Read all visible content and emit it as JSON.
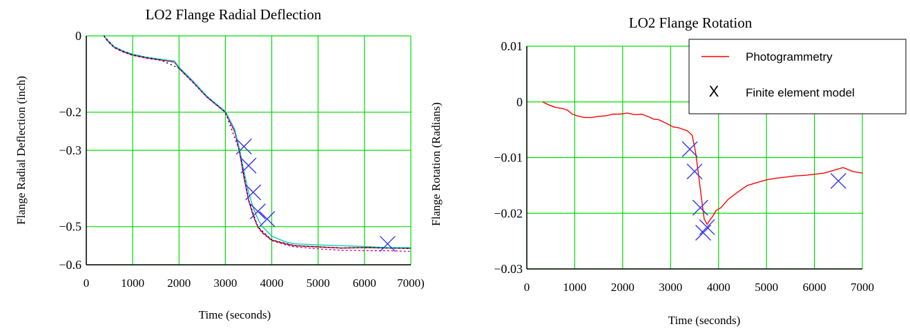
{
  "chart_data": [
    {
      "type": "line",
      "title": "LO2 Flange Radial Deflection",
      "xlabel": "Time (seconds)",
      "ylabel": "Flange Radial Deflection (inch)",
      "xlim": [
        0,
        7000
      ],
      "ylim": [
        -0.6,
        0
      ],
      "xticks": [
        0,
        1000,
        2000,
        3000,
        4000,
        5000,
        6000,
        7000
      ],
      "xtick_labels": [
        "0",
        "1000",
        "2000",
        "3000",
        "4000",
        "5000",
        "6000",
        "7000)"
      ],
      "yticks": [
        0,
        -0.2,
        -0.3,
        -0.5,
        -0.6
      ],
      "ytick_labels": [
        "0",
        "−0.2",
        "−0.3",
        "−0.5",
        "−0.6"
      ],
      "grid": true,
      "colors": {
        "grid": "#00dd00",
        "marker": "#3333ee"
      },
      "series": [
        {
          "color": "#cc0000",
          "x": [
            380,
            450,
            600,
            800,
            1000,
            1300,
            1600,
            1900,
            2000,
            2300,
            2600,
            2900,
            3000,
            3200,
            3300,
            3400,
            3500,
            3600,
            3700,
            3800,
            4000,
            4300,
            4500,
            5000,
            5500,
            6000,
            6500,
            7000
          ],
          "y": [
            0,
            -0.012,
            -0.03,
            -0.042,
            -0.05,
            -0.058,
            -0.063,
            -0.068,
            -0.085,
            -0.12,
            -0.16,
            -0.19,
            -0.2,
            -0.25,
            -0.3,
            -0.37,
            -0.43,
            -0.47,
            -0.5,
            -0.515,
            -0.535,
            -0.545,
            -0.55,
            -0.553,
            -0.556,
            -0.555,
            -0.556,
            -0.557
          ]
        },
        {
          "color": "#00cccc",
          "x": [
            380,
            450,
            600,
            800,
            1000,
            1300,
            1600,
            1900,
            2000,
            2300,
            2600,
            2900,
            3000,
            3200,
            3300,
            3400,
            3500,
            3600,
            3700,
            3800,
            4000,
            4300,
            4500,
            5000,
            5500,
            6000,
            6500,
            7000
          ],
          "y": [
            0,
            -0.01,
            -0.028,
            -0.04,
            -0.048,
            -0.056,
            -0.061,
            -0.066,
            -0.082,
            -0.118,
            -0.158,
            -0.188,
            -0.198,
            -0.245,
            -0.295,
            -0.355,
            -0.41,
            -0.45,
            -0.48,
            -0.5,
            -0.525,
            -0.54,
            -0.545,
            -0.548,
            -0.55,
            -0.552,
            -0.555,
            -0.555
          ]
        },
        {
          "color": "#cc00cc",
          "dash": "3,3",
          "x": [
            380,
            450,
            600,
            800,
            1000,
            1300,
            1600,
            1900,
            2000,
            2300,
            2600,
            2900,
            3000,
            3200,
            3300,
            3400,
            3500,
            3600,
            3700,
            3800,
            4000,
            4300,
            4500,
            5000,
            5500,
            6000,
            6500,
            7000
          ],
          "y": [
            0,
            -0.013,
            -0.031,
            -0.043,
            -0.051,
            -0.059,
            -0.064,
            -0.069,
            -0.086,
            -0.121,
            -0.161,
            -0.191,
            -0.201,
            -0.252,
            -0.302,
            -0.372,
            -0.432,
            -0.472,
            -0.502,
            -0.517,
            -0.537,
            -0.548,
            -0.553,
            -0.558,
            -0.562,
            -0.563,
            -0.563,
            -0.565
          ]
        },
        {
          "color": "#000000",
          "dash": "2,4",
          "x": [
            380,
            600,
            1000,
            1600,
            2000,
            2600,
            3000,
            3300,
            3500,
            3700,
            4000,
            4500,
            5000,
            5500,
            6000,
            6500,
            7000
          ],
          "y": [
            0,
            -0.03,
            -0.05,
            -0.063,
            -0.085,
            -0.16,
            -0.2,
            -0.3,
            -0.43,
            -0.5,
            -0.535,
            -0.55,
            -0.553,
            -0.556,
            -0.555,
            -0.556,
            -0.557
          ]
        }
      ],
      "markers": {
        "symbol": "X",
        "x": [
          3400,
          3500,
          3600,
          3700,
          3900,
          6500
        ],
        "y": [
          -0.29,
          -0.34,
          -0.41,
          -0.46,
          -0.48,
          -0.545
        ]
      }
    },
    {
      "type": "line",
      "title": "LO2 Flange Rotation",
      "xlabel": "Time (seconds)",
      "ylabel": "Flange Rotation (Radians)",
      "xlim": [
        0,
        7000
      ],
      "ylim": [
        -0.03,
        0.01
      ],
      "xticks": [
        0,
        1000,
        2000,
        3000,
        4000,
        5000,
        6000,
        7000
      ],
      "xtick_labels": [
        "0",
        "1000",
        "2000",
        "3000",
        "4000",
        "5000",
        "6000",
        "7000"
      ],
      "yticks": [
        0.01,
        0,
        -0.01,
        -0.02,
        -0.03
      ],
      "ytick_labels": [
        "0.01",
        "0",
        "−0.01",
        "−0.02",
        "−0.03"
      ],
      "grid": true,
      "colors": {
        "grid": "#00dd00",
        "line": "#ff0000",
        "marker": "#3333ee"
      },
      "legend": {
        "placement": "top-right",
        "entries": [
          {
            "label": "Photogrammetry",
            "symbol": "line",
            "color": "#ff0000"
          },
          {
            "label": "Finite element model",
            "symbol": "X",
            "color": "#3a7dd8"
          }
        ]
      },
      "series": [
        {
          "name": "Photogrammetry",
          "color": "#ff0000",
          "x": [
            330,
            450,
            600,
            750,
            850,
            950,
            1050,
            1200,
            1350,
            1500,
            1650,
            1800,
            1950,
            2100,
            2250,
            2400,
            2550,
            2650,
            2750,
            2850,
            2950,
            3050,
            3150,
            3250,
            3350,
            3450,
            3520,
            3580,
            3640,
            3700,
            3760,
            3820,
            3880,
            3950,
            4050,
            4200,
            4400,
            4600,
            4800,
            5000,
            5200,
            5400,
            5600,
            5800,
            6000,
            6200,
            6400,
            6600,
            6800,
            7000
          ],
          "y": [
            0,
            -0.0005,
            -0.001,
            -0.0012,
            -0.0015,
            -0.0022,
            -0.0025,
            -0.0028,
            -0.0028,
            -0.0026,
            -0.0025,
            -0.0022,
            -0.0022,
            -0.002,
            -0.0023,
            -0.0022,
            -0.0027,
            -0.0031,
            -0.0032,
            -0.0036,
            -0.004,
            -0.0045,
            -0.0046,
            -0.0049,
            -0.0052,
            -0.006,
            -0.009,
            -0.013,
            -0.017,
            -0.021,
            -0.022,
            -0.0212,
            -0.0205,
            -0.0195,
            -0.019,
            -0.0175,
            -0.0162,
            -0.015,
            -0.0145,
            -0.014,
            -0.0137,
            -0.0135,
            -0.0133,
            -0.0132,
            -0.013,
            -0.0128,
            -0.0123,
            -0.0118,
            -0.0125,
            -0.0128
          ]
        }
      ],
      "markers": {
        "name": "Finite element model",
        "symbol": "X",
        "x": [
          3400,
          3500,
          3620,
          3680,
          3760,
          6500
        ],
        "y": [
          -0.0085,
          -0.0125,
          -0.019,
          -0.0235,
          -0.0225,
          -0.0142
        ]
      }
    }
  ]
}
